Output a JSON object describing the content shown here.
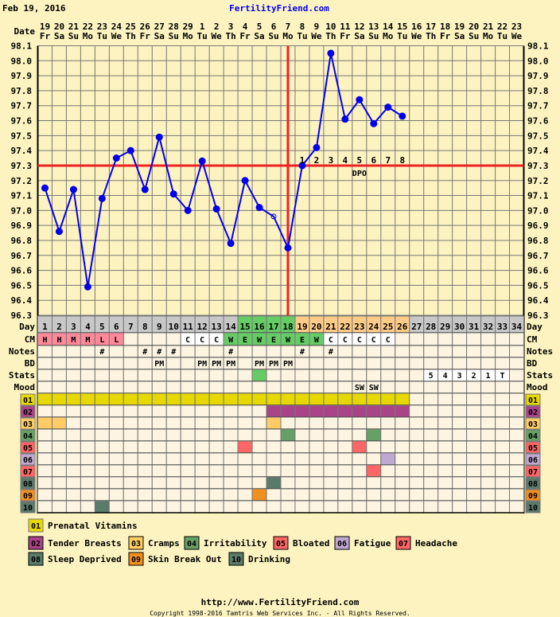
{
  "header": {
    "date": "Feb 19, 2016",
    "site": "FertilityFriend.com"
  },
  "labels": {
    "date": "Date",
    "day": "Day",
    "cm": "CM",
    "notes": "Notes",
    "bd": "BD",
    "stats": "Stats",
    "mood": "Mood"
  },
  "dates": [
    {
      "d": "19",
      "w": "Fr"
    },
    {
      "d": "20",
      "w": "Sa"
    },
    {
      "d": "21",
      "w": "Su"
    },
    {
      "d": "22",
      "w": "Mo"
    },
    {
      "d": "23",
      "w": "Tu"
    },
    {
      "d": "24",
      "w": "We"
    },
    {
      "d": "25",
      "w": "Th"
    },
    {
      "d": "26",
      "w": "Fr"
    },
    {
      "d": "27",
      "w": "Sa"
    },
    {
      "d": "28",
      "w": "Su"
    },
    {
      "d": "29",
      "w": "Mo"
    },
    {
      "d": "1",
      "w": "Tu"
    },
    {
      "d": "2",
      "w": "We"
    },
    {
      "d": "3",
      "w": "Th"
    },
    {
      "d": "4",
      "w": "Fr"
    },
    {
      "d": "5",
      "w": "Sa"
    },
    {
      "d": "6",
      "w": "Su"
    },
    {
      "d": "7",
      "w": "Mo"
    },
    {
      "d": "8",
      "w": "Tu"
    },
    {
      "d": "9",
      "w": "We"
    },
    {
      "d": "10",
      "w": "Th"
    },
    {
      "d": "11",
      "w": "Fr"
    },
    {
      "d": "12",
      "w": "Sa"
    },
    {
      "d": "13",
      "w": "Su"
    },
    {
      "d": "14",
      "w": "Mo"
    },
    {
      "d": "15",
      "w": "Tu"
    },
    {
      "d": "16",
      "w": "We"
    },
    {
      "d": "17",
      "w": "Th"
    },
    {
      "d": "18",
      "w": "Fr"
    },
    {
      "d": "19",
      "w": "Sa"
    },
    {
      "d": "20",
      "w": "Su"
    },
    {
      "d": "21",
      "w": "Mo"
    },
    {
      "d": "22",
      "w": "Tu"
    },
    {
      "d": "23",
      "w": "We"
    }
  ],
  "temp_axis": [
    "98.1",
    "98.0",
    "97.9",
    "97.8",
    "97.7",
    "97.6",
    "97.5",
    "97.4",
    "97.3",
    "97.2",
    "97.1",
    "97.0",
    "96.9",
    "96.8",
    "96.7",
    "96.6",
    "96.5",
    "96.4",
    "96.3"
  ],
  "chart_data": {
    "type": "line",
    "x": [
      1,
      2,
      3,
      4,
      5,
      6,
      7,
      8,
      9,
      10,
      11,
      12,
      13,
      14,
      15,
      16,
      17,
      18,
      19,
      20,
      21,
      22,
      23,
      24,
      25,
      26
    ],
    "y": [
      97.15,
      96.86,
      97.14,
      96.49,
      97.08,
      97.35,
      97.4,
      97.14,
      97.49,
      97.11,
      97.0,
      97.33,
      97.01,
      96.78,
      97.2,
      97.02,
      96.96,
      96.75,
      97.3,
      97.42,
      98.05,
      97.61,
      97.74,
      97.58,
      97.69,
      97.63
    ],
    "open_points": [
      17
    ],
    "coverline": 97.3,
    "ovulation_day": 18,
    "ylim": [
      96.3,
      98.1
    ],
    "grid": true,
    "line_color": "#0000ee",
    "coverline_color": "#ee2222"
  },
  "dpo": {
    "start_day": 19,
    "labels": [
      "1",
      "2",
      "3",
      "4",
      "5",
      "6",
      "7",
      "8"
    ],
    "title": "DPO"
  },
  "day_phase": [
    "gray",
    "gray",
    "gray",
    "gray",
    "gray",
    "gray",
    "gray",
    "gray",
    "gray",
    "gray",
    "gray",
    "gray",
    "gray",
    "gray",
    "green",
    "green",
    "green",
    "green",
    "orange",
    "orange",
    "orange",
    "orange",
    "orange",
    "orange",
    "orange",
    "orange",
    "gray",
    "gray",
    "gray",
    "gray",
    "gray",
    "gray",
    "gray",
    "gray"
  ],
  "colors": {
    "gray": "#c8c8c8",
    "green": "#66cc66",
    "orange": "#ffcc88",
    "pink": "#ff8899",
    "white": "#ffffff",
    "cell": "#fdf5e1",
    "bg": "#fdf3c0"
  },
  "cm": [
    {
      "v": "H",
      "c": "pink"
    },
    {
      "v": "H",
      "c": "pink"
    },
    {
      "v": "M",
      "c": "pink"
    },
    {
      "v": "M",
      "c": "pink"
    },
    {
      "v": "L",
      "c": "pink"
    },
    {
      "v": "L",
      "c": "pink"
    },
    {
      "v": ""
    },
    {
      "v": ""
    },
    {
      "v": ""
    },
    {
      "v": ""
    },
    {
      "v": "C",
      "c": "white"
    },
    {
      "v": "C",
      "c": "white"
    },
    {
      "v": "C",
      "c": "white"
    },
    {
      "v": "W",
      "c": "green"
    },
    {
      "v": "E",
      "c": "green"
    },
    {
      "v": "W",
      "c": "green"
    },
    {
      "v": "E",
      "c": "green"
    },
    {
      "v": "W",
      "c": "green"
    },
    {
      "v": "E",
      "c": "green"
    },
    {
      "v": "W",
      "c": "green"
    },
    {
      "v": "C",
      "c": "white"
    },
    {
      "v": "C",
      "c": "white"
    },
    {
      "v": "C",
      "c": "white"
    },
    {
      "v": "C",
      "c": "white"
    },
    {
      "v": "C",
      "c": "white"
    },
    {
      "v": ""
    },
    {
      "v": ""
    },
    {
      "v": ""
    },
    {
      "v": ""
    },
    {
      "v": ""
    },
    {
      "v": ""
    },
    {
      "v": ""
    },
    {
      "v": ""
    },
    {
      "v": ""
    }
  ],
  "notes": [
    "",
    "",
    "",
    "",
    "#",
    "",
    "",
    "#",
    "#",
    "#",
    "",
    "",
    "",
    "#",
    "",
    "",
    "",
    "",
    "#",
    "",
    "#",
    "",
    "",
    "",
    "",
    "",
    "",
    "",
    "",
    "",
    "",
    "",
    "",
    ""
  ],
  "bd": [
    "",
    "",
    "",
    "",
    "",
    "",
    "",
    "",
    "PM",
    "",
    "",
    "PM",
    "PM",
    "PM",
    "",
    "PM",
    "PM",
    "PM",
    "",
    "",
    "",
    "",
    "",
    "",
    "",
    "",
    "",
    "",
    "",
    "",
    "",
    "",
    "",
    ""
  ],
  "stats": [
    {
      "v": ""
    },
    {
      "v": ""
    },
    {
      "v": ""
    },
    {
      "v": ""
    },
    {
      "v": ""
    },
    {
      "v": ""
    },
    {
      "v": ""
    },
    {
      "v": ""
    },
    {
      "v": ""
    },
    {
      "v": ""
    },
    {
      "v": ""
    },
    {
      "v": ""
    },
    {
      "v": ""
    },
    {
      "v": ""
    },
    {
      "v": ""
    },
    {
      "v": "",
      "c": "green"
    },
    {
      "v": ""
    },
    {
      "v": ""
    },
    {
      "v": ""
    },
    {
      "v": ""
    },
    {
      "v": ""
    },
    {
      "v": ""
    },
    {
      "v": ""
    },
    {
      "v": ""
    },
    {
      "v": ""
    },
    {
      "v": ""
    },
    {
      "v": ""
    },
    {
      "v": "5",
      "c": "white"
    },
    {
      "v": "4",
      "c": "white"
    },
    {
      "v": "3",
      "c": "white"
    },
    {
      "v": "2",
      "c": "white"
    },
    {
      "v": "1",
      "c": "white"
    },
    {
      "v": "T",
      "c": "white"
    },
    {
      "v": ""
    }
  ],
  "mood": [
    "",
    "",
    "",
    "",
    "",
    "",
    "",
    "",
    "",
    "",
    "",
    "",
    "",
    "",
    "",
    "",
    "",
    "",
    "",
    "",
    "",
    "",
    "SW",
    "SW",
    "",
    "",
    "",
    "",
    "",
    "",
    "",
    "",
    "",
    ""
  ],
  "symptoms": [
    {
      "code": "01",
      "name": "Prenatal Vitamins",
      "color": "#e6d800",
      "days": [
        1,
        2,
        3,
        4,
        5,
        6,
        7,
        8,
        9,
        10,
        11,
        12,
        13,
        14,
        15,
        16,
        17,
        18,
        19,
        20,
        21,
        22,
        23,
        24,
        25,
        26
      ]
    },
    {
      "code": "02",
      "name": "Tender Breasts",
      "color": "#aa4488",
      "days": [
        17,
        18,
        19,
        20,
        21,
        22,
        23,
        24,
        25,
        26
      ]
    },
    {
      "code": "03",
      "name": "Cramps",
      "color": "#ffcc66",
      "days": [
        1,
        2,
        17
      ]
    },
    {
      "code": "04",
      "name": "Irritability",
      "color": "#66a066",
      "days": [
        18,
        24
      ]
    },
    {
      "code": "05",
      "name": "Bloated",
      "color": "#ff6666",
      "days": [
        15,
        23
      ]
    },
    {
      "code": "06",
      "name": "Fatigue",
      "color": "#c0a8d0",
      "days": [
        25
      ]
    },
    {
      "code": "07",
      "name": "Headache",
      "color": "#ff6666",
      "days": [
        24
      ]
    },
    {
      "code": "08",
      "name": "Sleep Deprived",
      "color": "#5a7a6a",
      "days": [
        17
      ]
    },
    {
      "code": "09",
      "name": "Skin Break Out",
      "color": "#f09020",
      "days": [
        16
      ]
    },
    {
      "code": "10",
      "name": "Drinking",
      "color": "#5a7a6a",
      "days": [
        5
      ]
    }
  ],
  "footer": {
    "url": "http://www.FertilityFriend.com",
    "copyright": "Copyright 1998-2016 Tamtris Web Services Inc. - All Rights Reserved."
  }
}
